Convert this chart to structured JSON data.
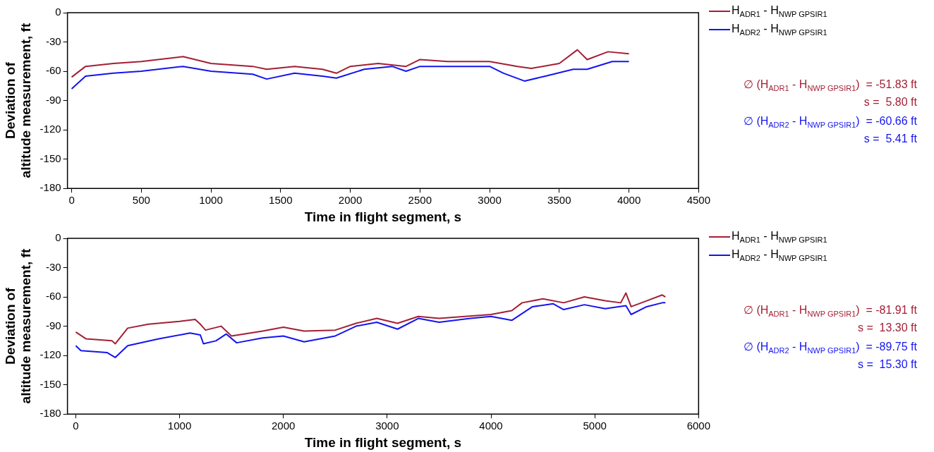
{
  "chart_data": [
    {
      "type": "line",
      "xlabel": "Time in flight segment, s",
      "ylabel": "Deviation of\naltitude measurement, ft",
      "xlim": [
        -30,
        4500
      ],
      "ylim": [
        -180,
        0
      ],
      "xticks": [
        0,
        500,
        1000,
        1500,
        2000,
        2500,
        3000,
        3500,
        4000,
        4500
      ],
      "yticks": [
        -180,
        -150,
        -120,
        -90,
        -60,
        -30,
        0
      ],
      "grid": false,
      "legend": "top right",
      "marker": "none",
      "line_style": "solid",
      "series": [
        {
          "name": "H$_{ADR1}$ - H$_{NWP GPSIR1}$",
          "color": "#a31f34",
          "x": [
            0,
            100,
            300,
            500,
            800,
            1000,
            1300,
            1400,
            1600,
            1800,
            1900,
            2000,
            2200,
            2400,
            2500,
            2700,
            3000,
            3200,
            3300,
            3500,
            3630,
            3700,
            3850,
            4000
          ],
          "values": [
            -66,
            -55,
            -52,
            -50,
            -45,
            -52,
            -55,
            -58,
            -55,
            -58,
            -62,
            -55,
            -52,
            -55,
            -48,
            -50,
            -50,
            -55,
            -57,
            -52,
            -38,
            -48,
            -40,
            -42
          ]
        },
        {
          "name": "H$_{ADR2}$ - H$_{NWP GPSIR1}$",
          "color": "#1414f0",
          "x": [
            0,
            100,
            300,
            500,
            800,
            1000,
            1300,
            1400,
            1600,
            1800,
            1900,
            2100,
            2300,
            2400,
            2500,
            3000,
            3100,
            3250,
            3400,
            3600,
            3700,
            3880,
            4000
          ],
          "values": [
            -78,
            -65,
            -62,
            -60,
            -55,
            -60,
            -63,
            -68,
            -62,
            -65,
            -67,
            -58,
            -55,
            -60,
            -55,
            -55,
            -62,
            -70,
            -65,
            -58,
            -58,
            -50,
            -50
          ]
        }
      ],
      "annotations": [
        "∅ (H$_{ADR1}$ - H$_{NWP GPSIR1}$)  = -51.83 ft",
        "s =  5.80 ft",
        "∅ (H$_{ADR2}$ - H$_{NWP GPSIR1}$)  = -60.66 ft",
        "s =  5.41 ft"
      ]
    },
    {
      "type": "line",
      "xlabel": "Time in flight segment, s",
      "ylabel": "Deviation of\naltitude measurement, ft",
      "xlim": [
        -80,
        6000
      ],
      "ylim": [
        -180,
        0
      ],
      "xticks": [
        0,
        1000,
        2000,
        3000,
        4000,
        5000,
        6000
      ],
      "yticks": [
        -180,
        -150,
        -120,
        -90,
        -60,
        -30,
        0
      ],
      "grid": false,
      "legend": "top right",
      "marker": "none",
      "line_style": "solid",
      "series": [
        {
          "name": "H$_{ADR1}$ - H$_{NWP GPSIR1}$",
          "color": "#a31f34",
          "x": [
            0,
            100,
            350,
            380,
            500,
            700,
            1000,
            1150,
            1200,
            1250,
            1400,
            1500,
            1800,
            2000,
            2200,
            2500,
            2700,
            2900,
            3100,
            3300,
            3500,
            4000,
            4200,
            4300,
            4500,
            4700,
            4900,
            5100,
            5250,
            5300,
            5350,
            5500,
            5650,
            5680
          ],
          "values": [
            -96,
            -103,
            -105,
            -108,
            -92,
            -88,
            -85,
            -83,
            -88,
            -94,
            -90,
            -100,
            -95,
            -91,
            -95,
            -94,
            -87,
            -82,
            -87,
            -80,
            -82,
            -78,
            -74,
            -66,
            -62,
            -66,
            -60,
            -64,
            -66,
            -56,
            -70,
            -64,
            -58,
            -60
          ]
        },
        {
          "name": "H$_{ADR2}$ - H$_{NWP GPSIR1}$",
          "color": "#1414f0",
          "x": [
            0,
            50,
            300,
            380,
            500,
            800,
            1100,
            1200,
            1230,
            1350,
            1450,
            1550,
            1800,
            2000,
            2200,
            2500,
            2700,
            2900,
            3100,
            3300,
            3500,
            3800,
            4000,
            4200,
            4400,
            4600,
            4700,
            4900,
            5100,
            5300,
            5350,
            5500,
            5650,
            5680
          ],
          "values": [
            -110,
            -115,
            -117,
            -122,
            -110,
            -103,
            -97,
            -99,
            -108,
            -105,
            -98,
            -107,
            -102,
            -100,
            -106,
            -100,
            -90,
            -86,
            -93,
            -82,
            -86,
            -82,
            -80,
            -84,
            -70,
            -67,
            -73,
            -68,
            -72,
            -69,
            -78,
            -70,
            -66,
            -66
          ]
        }
      ],
      "annotations": [
        "∅ (H$_{ADR1}$ - H$_{NWP GPSIR1}$)  = -81.91 ft",
        "s =  13.30 ft",
        "∅ (H$_{ADR2}$ - H$_{NWP GPSIR1}$)  = -89.75 ft",
        "s =  15.30 ft"
      ]
    }
  ]
}
